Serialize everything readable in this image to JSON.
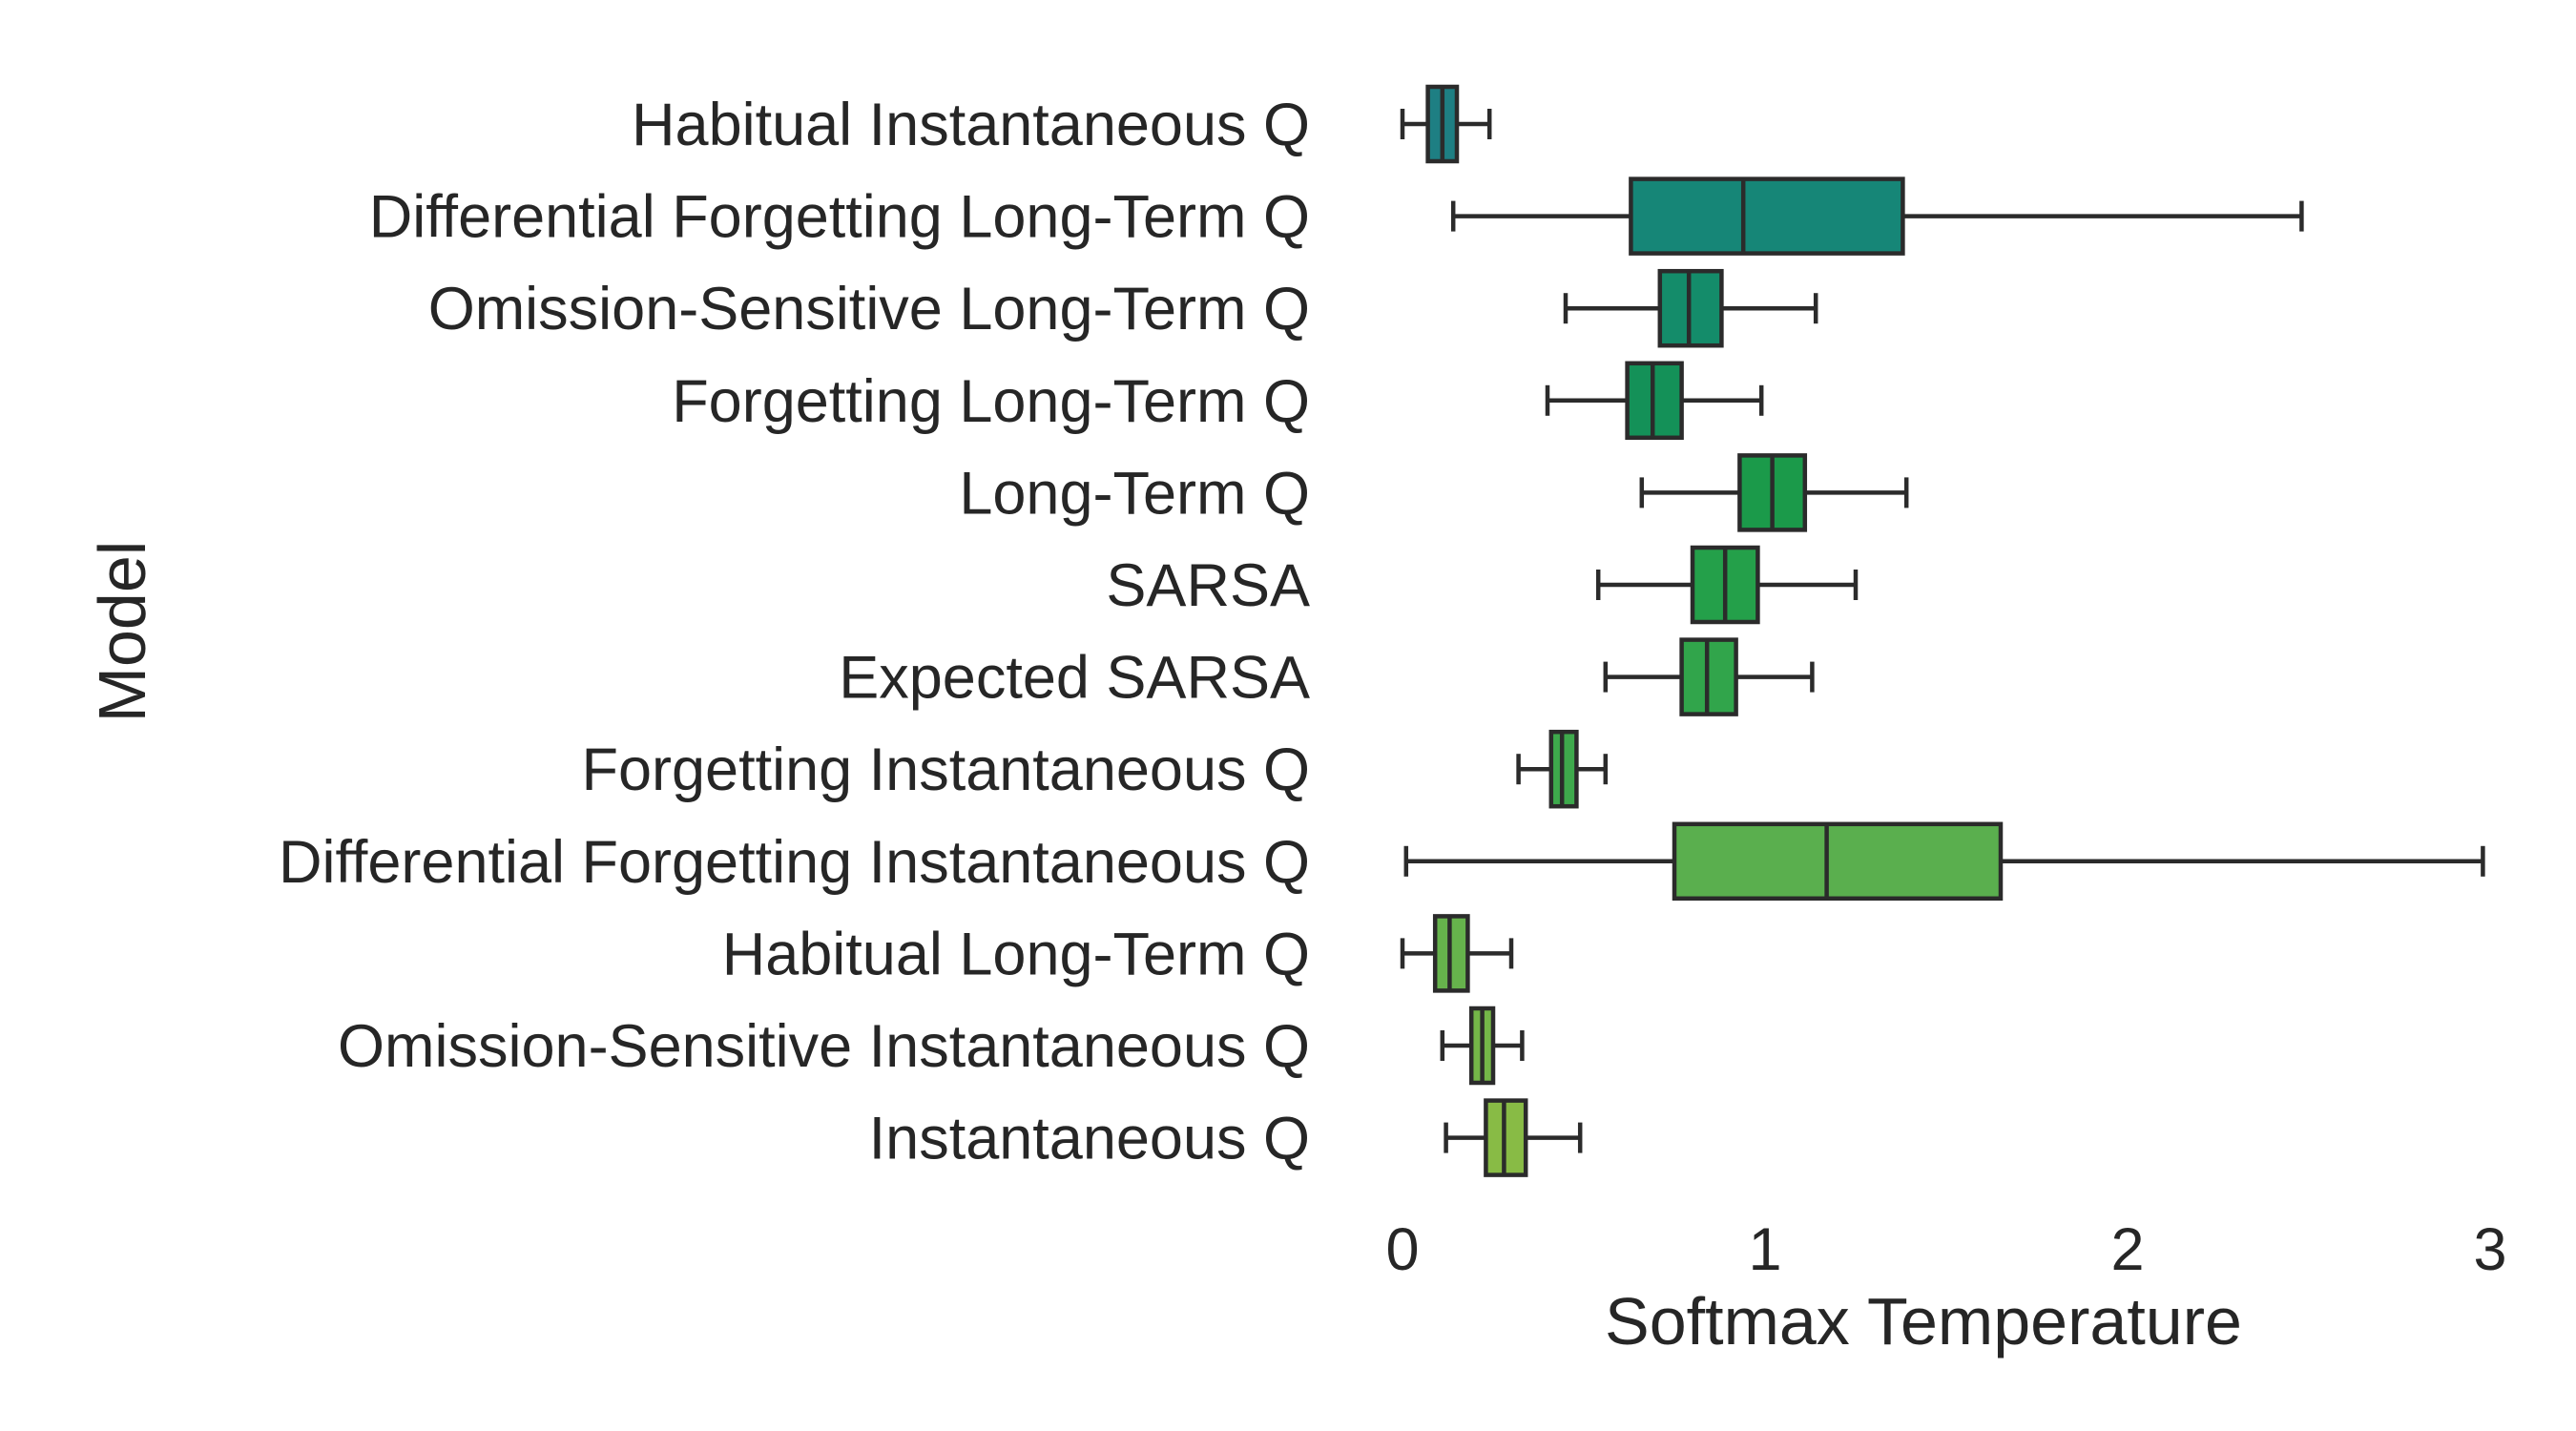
{
  "chart_data": {
    "type": "box",
    "orientation": "horizontal",
    "xlabel": "Softmax Temperature",
    "ylabel": "Model",
    "xlim": [
      0,
      3
    ],
    "xticks": [
      0,
      1,
      2,
      3
    ],
    "grid": false,
    "legend": "none",
    "edge_color": "#2b2b2b",
    "categories": [
      "Habitual Instantaneous Q",
      "Differential Forgetting Long-Term Q",
      "Omission-Sensitive Long-Term Q",
      "Forgetting Long-Term Q",
      "Long-Term Q",
      "SARSA",
      "Expected SARSA",
      "Forgetting Instantaneous Q",
      "Differential Forgetting Instantaneous Q",
      "Habitual Long-Term Q",
      "Omission-Sensitive Instantaneous Q",
      "Instantaneous Q"
    ],
    "boxes": [
      {
        "min": 0.0,
        "q1": 0.07,
        "median": 0.11,
        "q3": 0.15,
        "max": 0.24,
        "color": "#1e7f83"
      },
      {
        "min": 0.14,
        "q1": 0.63,
        "median": 0.94,
        "q3": 1.38,
        "max": 2.48,
        "color": "#168677"
      },
      {
        "min": 0.45,
        "q1": 0.71,
        "median": 0.79,
        "q3": 0.88,
        "max": 1.14,
        "color": "#148c6a"
      },
      {
        "min": 0.4,
        "q1": 0.62,
        "median": 0.69,
        "q3": 0.77,
        "max": 0.99,
        "color": "#149158"
      },
      {
        "min": 0.66,
        "q1": 0.93,
        "median": 1.02,
        "q3": 1.11,
        "max": 1.39,
        "color": "#1b9a4a"
      },
      {
        "min": 0.54,
        "q1": 0.8,
        "median": 0.89,
        "q3": 0.98,
        "max": 1.25,
        "color": "#24a04a"
      },
      {
        "min": 0.56,
        "q1": 0.77,
        "median": 0.84,
        "q3": 0.92,
        "max": 1.13,
        "color": "#31a54b"
      },
      {
        "min": 0.32,
        "q1": 0.41,
        "median": 0.44,
        "q3": 0.48,
        "max": 0.56,
        "color": "#3ea94c"
      },
      {
        "min": 0.01,
        "q1": 0.75,
        "median": 1.17,
        "q3": 1.65,
        "max": 2.98,
        "color": "#5aaf4e"
      },
      {
        "min": 0.0,
        "q1": 0.09,
        "median": 0.13,
        "q3": 0.18,
        "max": 0.3,
        "color": "#66b34c"
      },
      {
        "min": 0.11,
        "q1": 0.19,
        "median": 0.22,
        "q3": 0.25,
        "max": 0.33,
        "color": "#74b648"
      },
      {
        "min": 0.12,
        "q1": 0.23,
        "median": 0.28,
        "q3": 0.34,
        "max": 0.49,
        "color": "#88bb45"
      }
    ]
  }
}
